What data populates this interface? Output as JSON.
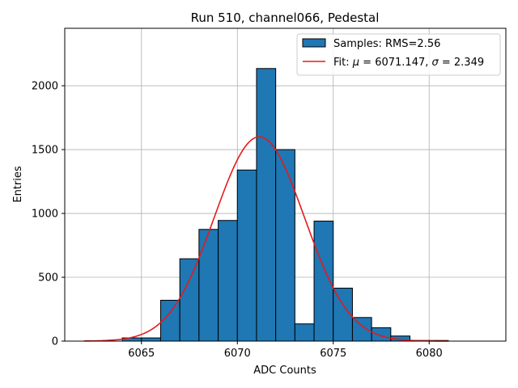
{
  "chart_data": {
    "type": "bar",
    "title": "Run 510, channel066, Pedestal",
    "xlabel": "ADC Counts",
    "ylabel": "Entries",
    "xlim": [
      6061,
      6084
    ],
    "ylim": [
      0,
      2450
    ],
    "grid": true,
    "legend_position": "top-right",
    "x_ticks": [
      6065,
      6070,
      6075,
      6080
    ],
    "y_ticks": [
      0,
      500,
      1000,
      1500,
      2000
    ],
    "histogram": {
      "name": "Samples: RMS=2.56",
      "color": "#1f77b4",
      "edge_color": "#000000",
      "bin_edges": [
        6064,
        6065,
        6066,
        6067,
        6068,
        6069,
        6070,
        6071,
        6072,
        6073,
        6074,
        6075,
        6076,
        6077,
        6078,
        6079,
        6080,
        6081
      ],
      "counts": [
        25,
        25,
        320,
        645,
        875,
        945,
        1340,
        2135,
        1500,
        135,
        940,
        415,
        185,
        105,
        40,
        5,
        5
      ]
    },
    "fit": {
      "name_prefix": "Fit: ",
      "mu_symbol": "μ",
      "mu_text": " = 6071.147, ",
      "sigma_symbol": "σ",
      "sigma_text": " = 2.349",
      "mu": 6071.147,
      "sigma": 2.349,
      "amplitude": 1600,
      "x_range": [
        6062,
        6081
      ],
      "color": "#e41a1c"
    }
  }
}
